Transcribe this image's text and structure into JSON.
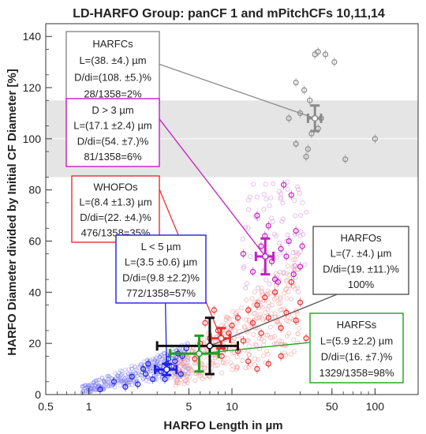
{
  "chart_data": {
    "type": "scatter",
    "title": "LD-HARFO Group: panCF 1 and mPitchCFs 10,11,14",
    "xlabel": "HARFO Length in µm",
    "ylabel": "HARFO Diameter divided by Initial CF Diameter [%]",
    "x_scale": "log",
    "xlim": [
      0.5,
      200
    ],
    "ylim": [
      0,
      145
    ],
    "x_ticks": [
      "0.5",
      "1",
      "5",
      "10",
      "50",
      "100"
    ],
    "x_tick_values": [
      0.5,
      1,
      5,
      10,
      50,
      100
    ],
    "y_ticks": [
      "0",
      "20",
      "40",
      "60",
      "80",
      "100",
      "120",
      "140"
    ],
    "y_tick_values": [
      0,
      20,
      40,
      60,
      80,
      100,
      120,
      140
    ],
    "band": {
      "y_from": 85,
      "y_to": 115,
      "color": "#e5e5e5"
    },
    "colors": {
      "harfcs": "#8a8a8a",
      "d_gt_3": "#c020c0",
      "whofos": "#e83030",
      "l_lt_5": "#2020e0",
      "harfos": "#111111",
      "harfss": "#20a020",
      "cloud_blue": "#8080f0",
      "cloud_red": "#f4a0a0",
      "cloud_magenta": "#d890e0"
    },
    "series": [
      {
        "name": "HARFCs",
        "points": [
          [
            38,
            133
          ],
          [
            40,
            134
          ],
          [
            45,
            133
          ],
          [
            52,
            130
          ],
          [
            28,
            122
          ],
          [
            32,
            119
          ],
          [
            35,
            115
          ],
          [
            30,
            110
          ],
          [
            25,
            108
          ],
          [
            36,
            102
          ],
          [
            42,
            108
          ],
          [
            40,
            104
          ],
          [
            28,
            98
          ],
          [
            34,
            96
          ],
          [
            33,
            93
          ],
          [
            62,
            92
          ],
          [
            100,
            100
          ]
        ]
      },
      {
        "name": "D > 3 µm",
        "points": [
          [
            15,
            70
          ],
          [
            18,
            66
          ],
          [
            25,
            60
          ],
          [
            28,
            64
          ],
          [
            22,
            57
          ],
          [
            16,
            58
          ],
          [
            19,
            52
          ],
          [
            24,
            54
          ],
          [
            30,
            50
          ],
          [
            14,
            48
          ],
          [
            20,
            45
          ],
          [
            27,
            47
          ],
          [
            21,
            44
          ],
          [
            26,
            78
          ],
          [
            23,
            82
          ],
          [
            12,
            55
          ],
          [
            17,
            62
          ],
          [
            31,
            58
          ]
        ]
      },
      {
        "name": "WHOFOs",
        "points": [
          [
            6,
            20
          ],
          [
            7,
            22
          ],
          [
            8,
            25
          ],
          [
            9,
            18
          ],
          [
            10,
            27
          ],
          [
            11,
            30
          ],
          [
            12,
            21
          ],
          [
            13,
            33
          ],
          [
            14,
            28
          ],
          [
            15,
            35
          ],
          [
            16,
            24
          ],
          [
            17,
            38
          ],
          [
            18,
            30
          ],
          [
            20,
            40
          ],
          [
            22,
            26
          ],
          [
            24,
            32
          ],
          [
            26,
            44
          ],
          [
            28,
            29
          ],
          [
            30,
            36
          ],
          [
            33,
            22
          ],
          [
            5.5,
            14
          ],
          [
            6.5,
            28
          ],
          [
            7.5,
            33
          ],
          [
            8.5,
            15
          ],
          [
            9.5,
            24
          ],
          [
            11,
            17
          ],
          [
            13,
            13
          ],
          [
            15,
            10
          ],
          [
            18,
            12
          ],
          [
            22,
            15
          ]
        ]
      },
      {
        "name": "L < 5 µm",
        "points": [
          [
            1.5,
            5
          ],
          [
            2,
            7
          ],
          [
            2.5,
            8
          ],
          [
            3,
            10
          ],
          [
            3.5,
            12
          ],
          [
            4,
            13
          ],
          [
            4.5,
            15
          ],
          [
            2.2,
            4
          ],
          [
            2.8,
            6
          ],
          [
            3.2,
            9
          ],
          [
            3.8,
            11
          ],
          [
            4.2,
            16
          ],
          [
            1.8,
            3
          ],
          [
            2.4,
            10
          ],
          [
            3.6,
            14
          ],
          [
            4.8,
            18
          ],
          [
            1.2,
            2
          ],
          [
            2.6,
            12
          ],
          [
            3.4,
            6
          ],
          [
            4.4,
            8
          ]
        ]
      }
    ],
    "summary_points": [
      {
        "name": "HARFCs",
        "x": 38,
        "y": 108,
        "x_err": 4,
        "y_err": 5
      },
      {
        "name": "D > 3 µm",
        "x": 17.1,
        "y": 54,
        "x_err": 2.4,
        "y_err": 7
      },
      {
        "name": "WHOFOs",
        "x": 8.4,
        "y": 22,
        "x_err": 1.3,
        "y_err": 4
      },
      {
        "name": "L < 5 µm",
        "x": 3.5,
        "y": 9.8,
        "x_err": 0.6,
        "y_err": 2.2
      },
      {
        "name": "HARFOs",
        "x": 7,
        "y": 19,
        "x_err": 4,
        "y_err": 11
      },
      {
        "name": "HARFSs",
        "x": 5.9,
        "y": 16,
        "x_err": 2.2,
        "y_err": 7
      }
    ],
    "annotations": [
      {
        "key": "harfcs",
        "color": "#8a8a8a",
        "lines": [
          "HARFCs",
          "L=(38. ±4.) µm",
          "D/di=(108. ±5.)%",
          "28/1358=2%"
        ]
      },
      {
        "key": "d_gt_3",
        "color": "#c020c0",
        "lines": [
          "D > 3 µm",
          "L=(17.1 ±2.4) µm",
          "D/di=(54. ±7.)%",
          "81/1358=6%"
        ]
      },
      {
        "key": "whofos",
        "color": "#e83030",
        "lines": [
          "WHOFOs",
          "L=(8.4 ±1.3) µm",
          "D/di=(22. ±4.)%",
          "476/1358=35%"
        ]
      },
      {
        "key": "l_lt_5",
        "color": "#2020e0",
        "lines": [
          "L < 5 µm",
          "L=(3.5 ±0.6) µm",
          "D/di=(9.8 ±2.2)%",
          "772/1358=57%"
        ]
      },
      {
        "key": "harfos",
        "color": "#555555",
        "lines": [
          "HARFOs",
          "L=(7. ±4.) µm",
          "D/di=(19. ±11.)%",
          "100%"
        ]
      },
      {
        "key": "harfss",
        "color": "#20a020",
        "lines": [
          "HARFSs",
          "L=(5.9 ±2.2) µm",
          "D/di=(16. ±7.)%",
          "1329/1358=98%"
        ]
      }
    ]
  }
}
